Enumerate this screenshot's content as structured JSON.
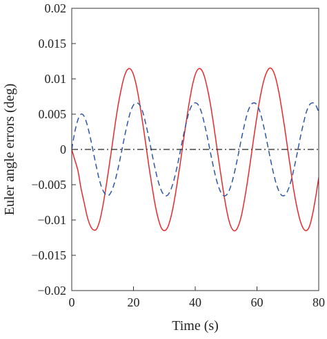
{
  "chart_data": {
    "type": "line",
    "title": "",
    "xlabel": "Time (s)",
    "ylabel": "Euler angle errors (deg)",
    "xlim": [
      0,
      80
    ],
    "ylim": [
      -0.02,
      0.02
    ],
    "xticks": [
      0,
      20,
      40,
      60,
      80
    ],
    "xtick_labels": [
      "0",
      "20",
      "40",
      "60",
      "80"
    ],
    "yticks": [
      -0.02,
      -0.015,
      -0.01,
      -0.005,
      0,
      0.005,
      0.01,
      0.015,
      0.02
    ],
    "ytick_labels": [
      "−0.02",
      "−0.015",
      "−0.01",
      "−0.005",
      "0",
      "0.005",
      "0.01",
      "0.015",
      "0.02"
    ],
    "grid": false,
    "legend": "none",
    "series": [
      {
        "color": "#e8282b",
        "style": "solid",
        "x": [
          0,
          1,
          2,
          3,
          4,
          5,
          6,
          7,
          8,
          9,
          10,
          11,
          12,
          13,
          14,
          15,
          16,
          17,
          18,
          19,
          20,
          21,
          22,
          23,
          24,
          25,
          26,
          27,
          28,
          29,
          30,
          31,
          32,
          33,
          34,
          35,
          36,
          37,
          38,
          39,
          40,
          41,
          42,
          43,
          44,
          45,
          46,
          47,
          48,
          49,
          50,
          51,
          52,
          53,
          54,
          55,
          56,
          57,
          58,
          59,
          60,
          61,
          62,
          63,
          64,
          65,
          66,
          67,
          68,
          69,
          70,
          71,
          72,
          73,
          74,
          75,
          76,
          77,
          78,
          79,
          80
        ],
        "y": [
          0,
          -0.0015,
          -0.003,
          -0.0055,
          -0.0075,
          -0.0095,
          -0.0108,
          -0.0114,
          -0.0113,
          -0.0102,
          -0.0082,
          -0.0056,
          -0.0027,
          0.0003,
          0.0034,
          0.0062,
          0.0085,
          0.0103,
          0.0113,
          0.0114,
          0.0106,
          0.0089,
          0.0065,
          0.0037,
          0.0007,
          -0.0024,
          -0.0052,
          -0.0078,
          -0.0098,
          -0.0111,
          -0.0115,
          -0.0111,
          -0.0098,
          -0.0078,
          -0.0052,
          -0.0024,
          0.0007,
          0.0037,
          0.0065,
          0.0089,
          0.0106,
          0.0114,
          0.0113,
          0.0103,
          0.0085,
          0.0062,
          0.0034,
          0.0003,
          -0.0027,
          -0.0056,
          -0.0082,
          -0.0102,
          -0.0113,
          -0.0115,
          -0.0108,
          -0.0093,
          -0.007,
          -0.0043,
          -0.0013,
          0.0018,
          0.0047,
          0.0073,
          0.0094,
          0.0108,
          0.0115,
          0.0113,
          0.0102,
          0.0083,
          0.0058,
          0.003,
          -0.0001,
          -0.0031,
          -0.006,
          -0.0083,
          -0.0101,
          -0.0112,
          -0.0115,
          -0.0109,
          -0.0092,
          -0.0068,
          -0.004
        ]
      },
      {
        "color": "#2a55a8",
        "style": "dashed",
        "x": [
          0,
          1,
          2,
          3,
          4,
          5,
          6,
          7,
          8,
          9,
          10,
          11,
          12,
          13,
          14,
          15,
          16,
          17,
          18,
          19,
          20,
          21,
          22,
          23,
          24,
          25,
          26,
          27,
          28,
          29,
          30,
          31,
          32,
          33,
          34,
          35,
          36,
          37,
          38,
          39,
          40,
          41,
          42,
          43,
          44,
          45,
          46,
          47,
          48,
          49,
          50,
          51,
          52,
          53,
          54,
          55,
          56,
          57,
          58,
          59,
          60,
          61,
          62,
          63,
          64,
          65,
          66,
          67,
          68,
          69,
          70,
          71,
          72,
          73,
          74,
          75,
          76,
          77,
          78,
          79,
          80
        ],
        "y": [
          0,
          0.0025,
          0.0042,
          0.005,
          0.0047,
          0.0035,
          0.0017,
          -0.0004,
          -0.0025,
          -0.0044,
          -0.0057,
          -0.0064,
          -0.0065,
          -0.0058,
          -0.0045,
          -0.0027,
          -0.0006,
          0.0016,
          0.0036,
          0.0053,
          0.0063,
          0.0066,
          0.0063,
          0.0053,
          0.0036,
          0.0016,
          -0.0006,
          -0.0027,
          -0.0045,
          -0.0058,
          -0.0065,
          -0.0065,
          -0.0058,
          -0.0045,
          -0.0027,
          -0.0006,
          0.0016,
          0.0036,
          0.0053,
          0.0063,
          0.0066,
          0.0063,
          0.0053,
          0.0036,
          0.0016,
          -0.0006,
          -0.0027,
          -0.0045,
          -0.0058,
          -0.0065,
          -0.0065,
          -0.0058,
          -0.0045,
          -0.0027,
          -0.0006,
          0.0016,
          0.0036,
          0.0053,
          0.0063,
          0.0066,
          0.0063,
          0.0053,
          0.0036,
          0.0016,
          -0.0006,
          -0.0027,
          -0.0045,
          -0.0058,
          -0.0065,
          -0.0065,
          -0.0058,
          -0.0045,
          -0.0027,
          -0.0006,
          0.0016,
          0.0036,
          0.0053,
          0.0063,
          0.0066,
          0.0063,
          0.0053
        ]
      },
      {
        "color": "#222222",
        "style": "dashdot",
        "x": [
          0,
          80
        ],
        "y": [
          0,
          0
        ]
      }
    ]
  }
}
